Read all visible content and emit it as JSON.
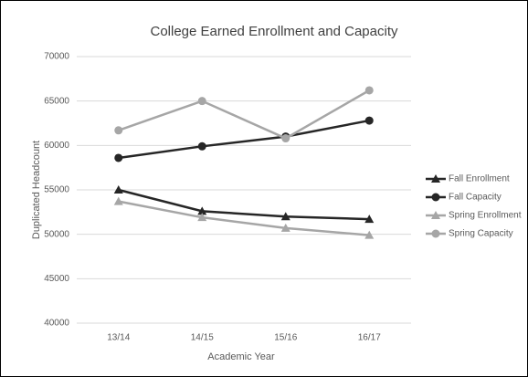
{
  "chart_data": {
    "type": "line",
    "title": "College Earned Enrollment and Capacity",
    "x_label": "Academic Year",
    "y_label": "Duplicated Headcount",
    "categories": [
      "13/14",
      "14/15",
      "15/16",
      "16/17"
    ],
    "series": [
      {
        "name": "Fall Enrollment",
        "color": "#262626",
        "marker": "triangle",
        "values": [
          55000,
          52600,
          52000,
          51700
        ]
      },
      {
        "name": "Fall Capacity",
        "color": "#262626",
        "marker": "circle",
        "values": [
          58600,
          59900,
          61000,
          62800
        ]
      },
      {
        "name": "Spring Enrollment",
        "color": "#a6a6a6",
        "marker": "triangle",
        "values": [
          53700,
          51900,
          50700,
          49900
        ]
      },
      {
        "name": "Spring Capacity",
        "color": "#a6a6a6",
        "marker": "circle",
        "values": [
          61700,
          65000,
          60800,
          66200
        ]
      }
    ],
    "ylim": [
      40000,
      70000
    ],
    "yticks": [
      40000,
      45000,
      50000,
      55000,
      60000,
      65000,
      70000
    ],
    "grid": true,
    "legend": "right"
  }
}
